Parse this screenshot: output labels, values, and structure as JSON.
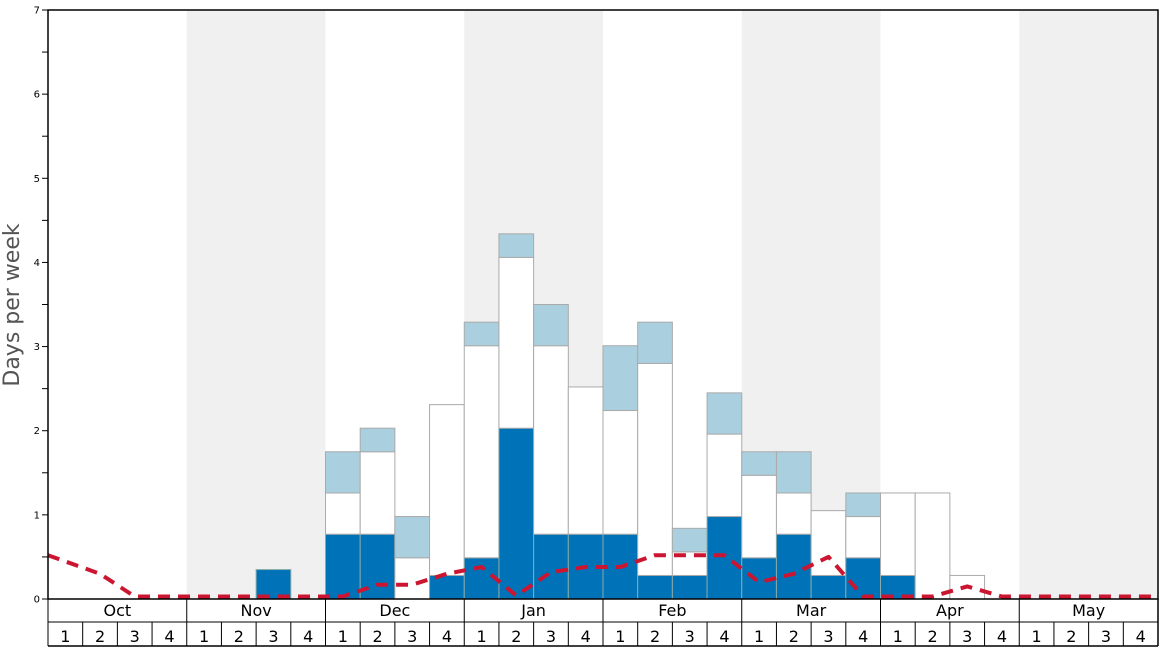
{
  "chart_data": {
    "type": "bar",
    "ylabel": "Days per week",
    "ylim": [
      0,
      7
    ],
    "yticks": [
      0,
      1,
      2,
      3,
      4,
      5,
      6,
      7
    ],
    "months": [
      "Oct",
      "Nov",
      "Dec",
      "Jan",
      "Feb",
      "Mar",
      "Apr",
      "May"
    ],
    "week_labels": [
      "1",
      "2",
      "3",
      "4"
    ],
    "colors": {
      "dark": "#0073b8",
      "white": "#ffffff",
      "light": "#aad0df",
      "line": "#cc1530",
      "band": "#f0f0f0"
    },
    "series": [
      {
        "values": [
          0,
          0,
          0,
          0,
          0,
          0,
          0.35,
          0,
          0.77,
          0.77,
          0,
          0.28,
          0.49,
          2.03,
          0.77,
          0.77,
          0.77,
          0.28,
          0.28,
          0.98,
          0.49,
          0.77,
          0.28,
          0.49,
          0.28,
          0,
          0,
          0,
          0,
          0,
          0,
          0
        ]
      },
      {
        "values": [
          0,
          0,
          0,
          0,
          0,
          0,
          0,
          0,
          0.49,
          0.98,
          0.49,
          2.03,
          2.52,
          2.03,
          2.24,
          1.75,
          1.47,
          2.52,
          0.28,
          0.98,
          0.98,
          0.49,
          0.77,
          0.49,
          0.98,
          1.26,
          0.28,
          0,
          0,
          0,
          0,
          0
        ]
      },
      {
        "values": [
          0,
          0,
          0,
          0,
          0,
          0,
          0,
          0,
          0.49,
          0.28,
          0.49,
          0,
          0.28,
          0.28,
          0.49,
          0,
          0.77,
          0.49,
          0.28,
          0.49,
          0.28,
          0.49,
          0,
          0.28,
          0,
          0,
          0,
          0,
          0,
          0,
          0,
          0
        ]
      }
    ],
    "line": [
      0.52,
      0.3,
      0.03,
      0.03,
      0.03,
      0.03,
      0.03,
      0.03,
      0.03,
      0.17,
      0.17,
      0.3,
      0.38,
      0.04,
      0.32,
      0.38,
      0.38,
      0.52,
      0.52,
      0.52,
      0.2,
      0.3,
      0.5,
      0.03,
      0.03,
      0.03,
      0.15,
      0.03,
      0.03,
      0.03,
      0.03,
      0.03
    ]
  }
}
